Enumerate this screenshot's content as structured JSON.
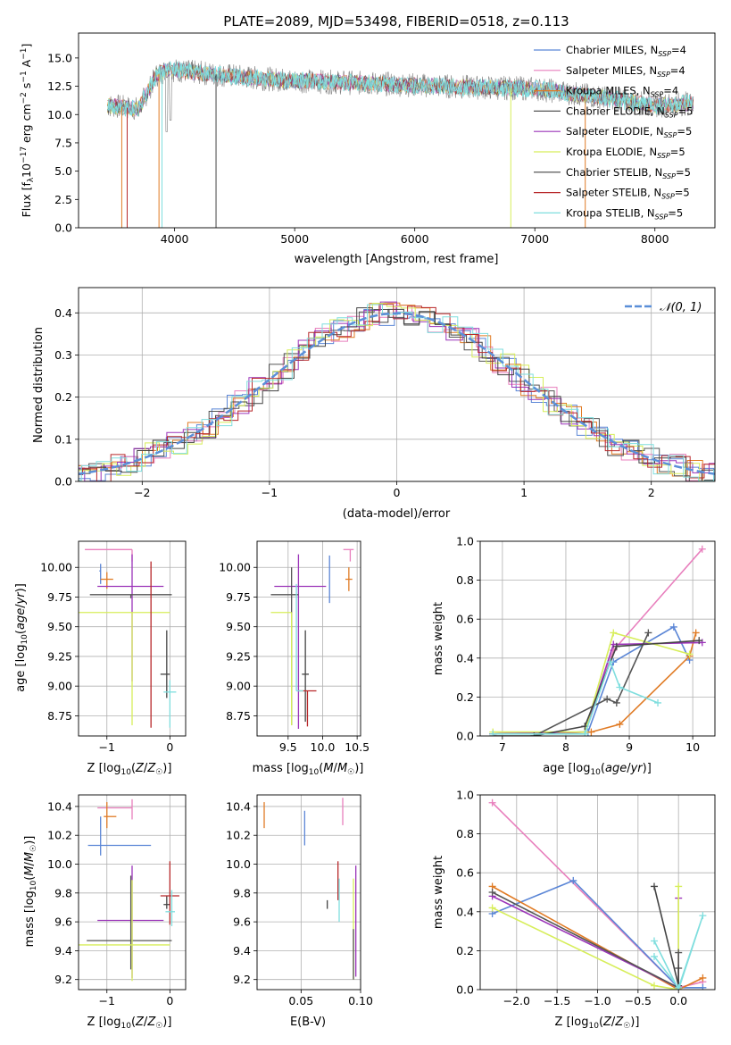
{
  "colors": {
    "chabrier_miles": "#5b86d6",
    "salpeter_miles": "#e87fbd",
    "kroupa_miles": "#e07b25",
    "chabrier_elodie": "#555555",
    "salpeter_elodie": "#9b34b9",
    "kroupa_elodie": "#d7ee5a",
    "chabrier_stelib": "#444444",
    "salpeter_stelib": "#b8282a",
    "kroupa_stelib": "#7fdede",
    "grid": "#b0b0b0",
    "gaussian": "#5b8fd8",
    "spectrum_gray": "#808080"
  },
  "chart_data": [
    {
      "type": "line",
      "title": "PLATE=2089, MJD=53498, FIBERID=0518, z=0.113",
      "xlabel": "wavelength [Angstrom, rest frame]",
      "ylabel": "Flux [f_λ10^-17 erg cm^-2 s^-1 A^-1]",
      "xlim": [
        3200,
        8500
      ],
      "ylim": [
        0,
        17.2
      ],
      "xticks": [
        "4000",
        "5000",
        "6000",
        "7000",
        "8000"
      ],
      "yticks": [
        "0.0",
        "2.5",
        "5.0",
        "7.5",
        "10.0",
        "12.5",
        "15.0"
      ],
      "grid": false,
      "legend_placement": "top-right",
      "series": [
        {
          "name": "Chabrier MILES, N_SSP=4"
        },
        {
          "name": "Salpeter MILES, N_SSP=4"
        },
        {
          "name": "Kroupa MILES, N_SSP=4"
        },
        {
          "name": "Chabrier ELODIE, N_SSP=5"
        },
        {
          "name": "Salpeter ELODIE, N_SSP=5"
        },
        {
          "name": "Kroupa ELODIE, N_SSP=5"
        },
        {
          "name": "Chabrier STELIB, N_SSP=5"
        },
        {
          "name": "Salpeter STELIB, N_SSP=5"
        },
        {
          "name": "Kroupa STELIB, N_SSP=5"
        }
      ],
      "continuum": {
        "x": [
          3450,
          3700,
          3850,
          3950,
          4100,
          4400,
          4700,
          5000,
          5500,
          6000,
          6500,
          7000,
          7500,
          8000,
          8300
        ],
        "y": [
          10.8,
          10.5,
          13.5,
          14.0,
          13.8,
          13.5,
          13.2,
          13.0,
          12.8,
          12.6,
          12.4,
          12.3,
          11.6,
          10.8,
          11.0
        ]
      }
    },
    {
      "type": "bar",
      "xlabel": "(data-model)/error",
      "ylabel": "Normed distribution",
      "xlim": [
        -2.5,
        2.5
      ],
      "ylim": [
        0,
        0.46
      ],
      "xticks": [
        "−2",
        "−1",
        "0",
        "1",
        "2"
      ],
      "yticks": [
        "0.0",
        "0.1",
        "0.2",
        "0.3",
        "0.4"
      ],
      "grid": true,
      "legend_placement": "top-right",
      "gaussian_label": "𝒩(0, 1)"
    },
    {
      "type": "scatter",
      "xlabel": "Z [log10(Z/Z☉)]",
      "ylabel": "age  [log10(age/yr)]",
      "xlim": [
        -1.45,
        0.25
      ],
      "ylim": [
        8.58,
        10.22
      ],
      "xticks": [
        "−1",
        "0"
      ],
      "yticks": [
        "8.75",
        "9.00",
        "9.25",
        "9.50",
        "9.75",
        "10.00"
      ],
      "points": [
        {
          "x": -0.6,
          "xerr": [
            0.75,
            0.0
          ],
          "y": 10.15,
          "yerr": [
            0.1,
            0.0
          ],
          "c": "salpeter_miles"
        },
        {
          "x": -1.1,
          "xerr": [
            0.02,
            0.0
          ],
          "y": 9.97,
          "yerr": [
            0.11,
            0.06
          ],
          "c": "chabrier_miles"
        },
        {
          "x": -1.0,
          "xerr": [
            0.1,
            0.1
          ],
          "y": 9.9,
          "yerr": [
            0.08,
            0.06
          ],
          "c": "kroupa_miles"
        },
        {
          "x": -0.6,
          "xerr": [
            0.55,
            0.5
          ],
          "y": 9.84,
          "yerr": [
            0.8,
            0.27
          ],
          "c": "salpeter_elodie"
        },
        {
          "x": -0.62,
          "xerr": [
            0.65,
            0.65
          ],
          "y": 9.77,
          "yerr": [
            0.03,
            0.0
          ],
          "c": "chabrier_elodie"
        },
        {
          "x": -0.6,
          "xerr": [
            0.85,
            0.6
          ],
          "y": 9.62,
          "yerr": [
            0.95,
            0.0
          ],
          "c": "kroupa_elodie"
        },
        {
          "x": -0.05,
          "xerr": [
            0.1,
            0.05
          ],
          "y": 9.1,
          "yerr": [
            0.2,
            0.37
          ],
          "c": "chabrier_stelib"
        },
        {
          "x": -0.3,
          "xerr": [
            0.0,
            0.0
          ],
          "y": 9.45,
          "yerr": [
            0.8,
            0.6
          ],
          "c": "salpeter_stelib"
        },
        {
          "x": 0.0,
          "xerr": [
            0.1,
            0.1
          ],
          "y": 8.95,
          "yerr": [
            0.3,
            0.1
          ],
          "c": "kroupa_stelib"
        }
      ]
    },
    {
      "type": "scatter",
      "xlabel": "mass [log10(M/M☉)]",
      "ylabel": "",
      "xlim": [
        9.05,
        10.55
      ],
      "ylim": [
        8.58,
        10.22
      ],
      "xticks": [
        "9.5",
        "10.0",
        "10.5"
      ],
      "yticks": [
        "8.75",
        "9.00",
        "9.25",
        "9.50",
        "9.75",
        "10.00"
      ],
      "points": [
        {
          "x": 10.4,
          "xerr": [
            0.1,
            0.05
          ],
          "y": 10.15,
          "yerr": [
            0.1,
            0.0
          ],
          "c": "salpeter_miles"
        },
        {
          "x": 10.1,
          "xerr": [
            0.0,
            0.0
          ],
          "y": 9.9,
          "yerr": [
            0.2,
            0.2
          ],
          "c": "chabrier_miles"
        },
        {
          "x": 10.38,
          "xerr": [
            0.05,
            0.05
          ],
          "y": 9.9,
          "yerr": [
            0.1,
            0.1
          ],
          "c": "kroupa_miles"
        },
        {
          "x": 9.65,
          "xerr": [
            0.35,
            0.4
          ],
          "y": 9.84,
          "yerr": [
            1.2,
            0.27
          ],
          "c": "salpeter_elodie"
        },
        {
          "x": 9.55,
          "xerr": [
            0.3,
            0.1
          ],
          "y": 9.77,
          "yerr": [
            1.1,
            0.23
          ],
          "c": "chabrier_elodie"
        },
        {
          "x": 9.55,
          "xerr": [
            0.3,
            0.0
          ],
          "y": 9.62,
          "yerr": [
            0.95,
            0.0
          ],
          "c": "kroupa_elodie"
        },
        {
          "x": 9.75,
          "xerr": [
            0.05,
            0.05
          ],
          "y": 9.1,
          "yerr": [
            0.4,
            0.37
          ],
          "c": "chabrier_stelib"
        },
        {
          "x": 9.78,
          "xerr": [
            0.13,
            0.13
          ],
          "y": 8.96,
          "yerr": [
            0.3,
            0.0
          ],
          "c": "salpeter_stelib"
        },
        {
          "x": 9.62,
          "xerr": [
            0.0,
            0.1
          ],
          "y": 8.96,
          "yerr": [
            0.0,
            0.9
          ],
          "c": "kroupa_stelib"
        }
      ]
    },
    {
      "type": "line",
      "xlabel": "age  [log10(age/yr)]",
      "ylabel": "mass weight",
      "xlim": [
        6.65,
        10.35
      ],
      "ylim": [
        0.0,
        1.0
      ],
      "xticks": [
        "7",
        "8",
        "9",
        "10"
      ],
      "yticks": [
        "0.0",
        "0.2",
        "0.4",
        "0.6",
        "0.8",
        "1.0"
      ],
      "grid": true,
      "series": [
        {
          "c": "salpeter_miles",
          "x": [
            6.85,
            8.3,
            8.75,
            10.15
          ],
          "y": [
            0.01,
            0.02,
            0.44,
            0.96
          ]
        },
        {
          "c": "chabrier_miles",
          "x": [
            6.85,
            8.35,
            8.75,
            9.7,
            9.95
          ],
          "y": [
            0.01,
            0.02,
            0.38,
            0.56,
            0.39
          ]
        },
        {
          "c": "kroupa_miles",
          "x": [
            6.85,
            8.4,
            8.85,
            9.95,
            10.05
          ],
          "y": [
            0.01,
            0.02,
            0.06,
            0.41,
            0.53
          ]
        },
        {
          "c": "salpeter_elodie",
          "x": [
            6.85,
            8.3,
            8.75,
            10.15
          ],
          "y": [
            0.01,
            0.02,
            0.47,
            0.48
          ]
        },
        {
          "c": "kroupa_elodie",
          "x": [
            6.85,
            8.3,
            8.75,
            9.95
          ],
          "y": [
            0.02,
            0.02,
            0.53,
            0.42
          ]
        },
        {
          "c": "chabrier_elodie",
          "x": [
            6.85,
            7.5,
            8.65,
            8.8,
            9.3
          ],
          "y": [
            0.0,
            0.0,
            0.19,
            0.17,
            0.53
          ]
        },
        {
          "c": "chabrier_stelib",
          "x": [
            7.5,
            8.3,
            8.8,
            10.1
          ],
          "y": [
            0.0,
            0.05,
            0.46,
            0.49
          ]
        },
        {
          "c": "kroupa_stelib",
          "x": [
            6.85,
            8.3,
            8.7,
            8.85,
            9.45
          ],
          "y": [
            0.01,
            0.01,
            0.38,
            0.25,
            0.17
          ]
        }
      ]
    },
    {
      "type": "scatter",
      "xlabel": "Z [log10(Z/Z☉)]",
      "ylabel": "mass [log10(M/M☉)]",
      "xlim": [
        -1.45,
        0.25
      ],
      "ylim": [
        9.13,
        10.48
      ],
      "xticks": [
        "−1",
        "0"
      ],
      "yticks": [
        "9.2",
        "9.4",
        "9.6",
        "9.8",
        "10.0",
        "10.2",
        "10.4"
      ],
      "points": [
        {
          "x": -0.6,
          "xerr": [
            0.55,
            0.0
          ],
          "y": 10.39,
          "yerr": [
            0.08,
            0.06
          ],
          "c": "salpeter_miles"
        },
        {
          "x": -1.0,
          "xerr": [
            0.05,
            0.15
          ],
          "y": 10.33,
          "yerr": [
            0.08,
            0.1
          ],
          "c": "kroupa_miles"
        },
        {
          "x": -1.1,
          "xerr": [
            0.2,
            0.8
          ],
          "y": 10.13,
          "yerr": [
            0.07,
            0.2
          ],
          "c": "chabrier_miles"
        },
        {
          "x": -0.6,
          "xerr": [
            0.55,
            0.5
          ],
          "y": 9.61,
          "yerr": [
            0.4,
            0.38
          ],
          "c": "salpeter_elodie"
        },
        {
          "x": -0.62,
          "xerr": [
            0.7,
            0.65
          ],
          "y": 9.47,
          "yerr": [
            0.2,
            0.45
          ],
          "c": "chabrier_elodie"
        },
        {
          "x": -0.6,
          "xerr": [
            0.85,
            0.6
          ],
          "y": 9.44,
          "yerr": [
            0.25,
            0.45
          ],
          "c": "kroupa_elodie"
        },
        {
          "x": -0.05,
          "xerr": [
            0.05,
            0.05
          ],
          "y": 9.72,
          "yerr": [
            0.03,
            0.06
          ],
          "c": "chabrier_stelib"
        },
        {
          "x": 0.0,
          "xerr": [
            0.15,
            0.15
          ],
          "y": 9.78,
          "yerr": [
            0.2,
            0.24
          ],
          "c": "salpeter_stelib"
        },
        {
          "x": 0.03,
          "xerr": [
            0.1,
            0.05
          ],
          "y": 9.67,
          "yerr": [
            0.1,
            0.15
          ],
          "c": "kroupa_stelib"
        }
      ]
    },
    {
      "type": "scatter",
      "xlabel": "E(B-V)",
      "ylabel": "",
      "xlim": [
        0.013,
        0.1
      ],
      "ylim": [
        9.13,
        10.48
      ],
      "xticks": [
        "0.05",
        "0.10"
      ],
      "yticks": [
        "9.2",
        "9.4",
        "9.6",
        "9.8",
        "10.0",
        "10.2",
        "10.4"
      ],
      "points": [
        {
          "x": 0.019,
          "y": 10.35,
          "yerr": [
            0.1,
            0.08
          ],
          "c": "kroupa_miles"
        },
        {
          "x": 0.053,
          "y": 10.25,
          "yerr": [
            0.12,
            0.12
          ],
          "c": "chabrier_miles"
        },
        {
          "x": 0.085,
          "y": 10.33,
          "yerr": [
            0.06,
            0.13
          ],
          "c": "salpeter_miles"
        },
        {
          "x": 0.081,
          "y": 9.95,
          "yerr": [
            0.2,
            0.07
          ],
          "c": "salpeter_stelib"
        },
        {
          "x": 0.072,
          "y": 9.72,
          "yerr": [
            0.03,
            0.03
          ],
          "c": "chabrier_stelib"
        },
        {
          "x": 0.082,
          "y": 9.72,
          "yerr": [
            0.12,
            0.18
          ],
          "c": "kroupa_stelib"
        },
        {
          "x": 0.096,
          "y": 9.62,
          "yerr": [
            0.4,
            0.37
          ],
          "c": "salpeter_elodie"
        },
        {
          "x": 0.094,
          "y": 9.55,
          "yerr": [
            0.35,
            0.35
          ],
          "c": "kroupa_elodie"
        },
        {
          "x": 0.094,
          "y": 9.55,
          "yerr": [
            0.35,
            0.0
          ],
          "c": "chabrier_elodie"
        }
      ]
    },
    {
      "type": "line",
      "xlabel": "Z [log10(Z/Z☉)]",
      "ylabel": "mass weight",
      "xlim": [
        -2.45,
        0.45
      ],
      "ylim": [
        0.0,
        1.0
      ],
      "xticks": [
        "−2.0",
        "−1.5",
        "−1.0",
        "−0.5",
        "0.0"
      ],
      "yticks": [
        "0.0",
        "0.2",
        "0.4",
        "0.6",
        "0.8",
        "1.0"
      ],
      "grid": true,
      "series": [
        {
          "c": "salpeter_miles",
          "x": [
            -2.3,
            0.0,
            0.3
          ],
          "y": [
            0.96,
            0.01,
            0.04
          ]
        },
        {
          "c": "chabrier_miles",
          "x": [
            -2.3,
            -1.3,
            0.0,
            0.3
          ],
          "y": [
            0.39,
            0.56,
            0.01,
            0.01
          ]
        },
        {
          "c": "kroupa_miles",
          "x": [
            -2.3,
            0.0,
            0.3
          ],
          "y": [
            0.53,
            0.0,
            0.06
          ]
        },
        {
          "c": "salpeter_elodie",
          "x": [
            -2.3,
            0.0,
            0.0
          ],
          "y": [
            0.48,
            0.01,
            0.47
          ]
        },
        {
          "c": "kroupa_elodie",
          "x": [
            -2.3,
            -0.3,
            0.0,
            0.0
          ],
          "y": [
            0.42,
            0.02,
            0.0,
            0.53
          ]
        },
        {
          "c": "chabrier_elodie",
          "x": [
            -2.3,
            0.0,
            0.0
          ],
          "y": [
            0.5,
            0.01,
            0.19
          ]
        },
        {
          "c": "chabrier_stelib",
          "x": [
            -0.3,
            0.0,
            0.0
          ],
          "y": [
            0.53,
            0.02,
            0.11
          ]
        },
        {
          "c": "kroupa_stelib",
          "x": [
            -0.3,
            0.0,
            0.3,
            0.0,
            -0.3
          ],
          "y": [
            0.25,
            0.0,
            0.38,
            0.01,
            0.17
          ]
        }
      ]
    }
  ]
}
